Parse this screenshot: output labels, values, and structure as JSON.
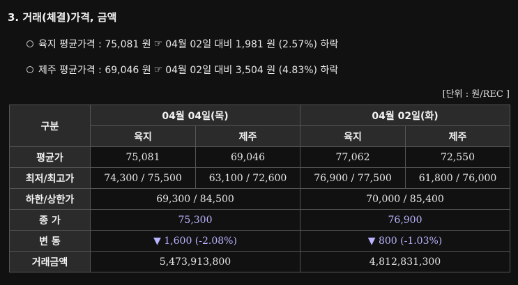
{
  "section_title": "3. 거래(체결)가격, 금액",
  "lines": [
    {
      "prefix": "육지 평균가격 : 75,081 원",
      "hand": "☞",
      "suffix": "04월 02일 대비 1,981 원 (2.57%) 하락"
    },
    {
      "prefix": "제주 평균가격 : 69,046 원",
      "hand": "☞",
      "suffix": "04월 02일 대비 3,504 원 (4.83%) 하락"
    }
  ],
  "unit_note": "[단위 : 원/REC ]",
  "table": {
    "row_header": "구분",
    "date1": "04월 04일(목)",
    "date2": "04월 02일(화)",
    "sub": [
      "육지",
      "제주",
      "육지",
      "제주"
    ],
    "avg_label": "평균가",
    "avg": [
      "75,081",
      "69,046",
      "77,062",
      "72,550"
    ],
    "minmax_label": "최저/최고가",
    "minmax": [
      "74,300 / 75,500",
      "63,100 / 72,600",
      "76,900 / 77,500",
      "61,800 / 76,000"
    ],
    "limit_label": "하한/상한가",
    "limit": [
      "69,300 / 84,500",
      "70,000 / 85,400"
    ],
    "close_label": "종 가",
    "close": [
      "75,300",
      "76,900"
    ],
    "change_label": "변 동",
    "change": [
      "▼ 1,600 (-2.08%)",
      "▼ 800 (-1.03%)"
    ],
    "amount_label": "거래금액",
    "amount": [
      "5,473,913,800",
      "4,812,831,300"
    ]
  }
}
